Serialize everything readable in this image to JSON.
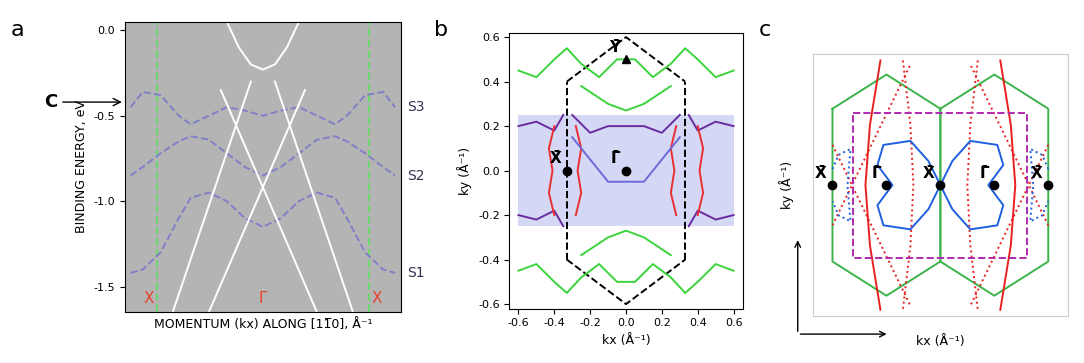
{
  "chart_data": [
    {
      "panel_label": "a",
      "type": "line",
      "ylabel": "BINDING ENERGY, eV",
      "xlabel": "MOMENTUM (kx) ALONG [11̅0], Å⁻¹",
      "xlim": [
        -1.15,
        1.15
      ],
      "ylim": [
        -1.65,
        0.05
      ],
      "yticks": [
        0.0,
        -0.5,
        -1.0,
        -1.5
      ],
      "tick_labels": "y",
      "grid": false,
      "background": "#b4b4b4",
      "vlines": [
        {
          "x": -0.88,
          "color": "#6fd66f",
          "line_style": "dashed"
        },
        {
          "x": 0.88,
          "color": "#6fd66f",
          "line_style": "dashed"
        }
      ],
      "series": [
        {
          "name": "S3",
          "color": "#8080c8",
          "line_style": "dashed",
          "x": [
            -1.1,
            -1.0,
            -0.85,
            -0.7,
            -0.6,
            -0.45,
            -0.3,
            -0.15,
            0,
            0.15,
            0.3,
            0.45,
            0.6,
            0.7,
            0.85,
            1.0,
            1.1
          ],
          "values": [
            -0.45,
            -0.36,
            -0.38,
            -0.5,
            -0.55,
            -0.5,
            -0.45,
            -0.47,
            -0.5,
            -0.47,
            -0.45,
            -0.5,
            -0.55,
            -0.5,
            -0.38,
            -0.36,
            -0.45
          ]
        },
        {
          "name": "S2",
          "color": "#8080c8",
          "line_style": "dashed",
          "x": [
            -1.1,
            -1.0,
            -0.85,
            -0.7,
            -0.6,
            -0.45,
            -0.3,
            -0.15,
            0,
            0.15,
            0.3,
            0.45,
            0.6,
            0.7,
            0.85,
            1.0,
            1.1
          ],
          "values": [
            -0.85,
            -0.8,
            -0.72,
            -0.65,
            -0.62,
            -0.64,
            -0.72,
            -0.8,
            -0.85,
            -0.8,
            -0.72,
            -0.64,
            -0.62,
            -0.65,
            -0.72,
            -0.8,
            -0.85
          ]
        },
        {
          "name": "S1",
          "color": "#8080c8",
          "line_style": "dashed",
          "x": [
            -1.1,
            -1.0,
            -0.85,
            -0.7,
            -0.6,
            -0.45,
            -0.3,
            -0.15,
            0,
            0.15,
            0.3,
            0.45,
            0.6,
            0.7,
            0.85,
            1.0,
            1.1
          ],
          "values": [
            -1.42,
            -1.4,
            -1.3,
            -1.1,
            -0.98,
            -0.95,
            -1.0,
            -1.1,
            -1.15,
            -1.1,
            -1.0,
            -0.95,
            -0.98,
            -1.1,
            -1.3,
            -1.4,
            -1.42
          ]
        },
        {
          "color": "#ffffff",
          "line_style": "solid",
          "x": [
            -0.45,
            0.35
          ],
          "values": [
            -1.65,
            -0.35
          ]
        },
        {
          "color": "#ffffff",
          "line_style": "solid",
          "x": [
            -0.35,
            0.45
          ],
          "values": [
            -0.35,
            -1.65
          ]
        },
        {
          "color": "#ffffff",
          "line_style": "solid",
          "x": [
            -0.1,
            -0.75
          ],
          "values": [
            -0.3,
            -1.65
          ]
        },
        {
          "color": "#ffffff",
          "line_style": "solid",
          "x": [
            0.1,
            0.75
          ],
          "values": [
            -0.3,
            -1.65
          ]
        },
        {
          "color": "#ffffff",
          "line_style": "solid",
          "x": [
            -0.3,
            -0.2,
            -0.1,
            0,
            0.1,
            0.2,
            0.3
          ],
          "values": [
            0.05,
            -0.1,
            -0.2,
            -0.23,
            -0.2,
            -0.1,
            0.05
          ]
        }
      ],
      "points": [
        {
          "label": "X",
          "x": -0.95,
          "color": "#e8402a"
        },
        {
          "label": "Γ",
          "x": 0,
          "color": "#e8402a"
        },
        {
          "label": "X",
          "x": 0.95,
          "color": "#e8402a"
        }
      ],
      "annotations": [
        {
          "text": "C",
          "y": -0.42
        }
      ]
    },
    {
      "panel_label": "b",
      "type": "line",
      "xlabel": "kx (Å⁻¹)",
      "ylabel": "ky (Å⁻¹)",
      "xlim": [
        -0.65,
        0.65
      ],
      "ylim": [
        -0.62,
        0.62
      ],
      "xticks": [
        -0.6,
        -0.4,
        -0.2,
        0.0,
        0.2,
        0.4,
        0.6
      ],
      "yticks": [
        -0.6,
        -0.4,
        -0.2,
        0.0,
        0.2,
        0.4,
        0.6
      ],
      "grid": false,
      "shaded_region": {
        "x": [
          -0.6,
          0.6
        ],
        "y": [
          -0.25,
          0.25
        ],
        "color": "#d4d8f4"
      },
      "series": [
        {
          "color": "#000000",
          "line_style": "dashed",
          "x": [
            -0.33,
            -0.33
          ],
          "values": [
            -0.4,
            0.4
          ]
        },
        {
          "color": "#000000",
          "line_style": "dashed",
          "x": [
            0.33,
            0.33
          ],
          "values": [
            -0.4,
            0.4
          ]
        },
        {
          "color": "#000000",
          "line_style": "dashed",
          "x": [
            -0.33,
            0,
            0.33
          ],
          "values": [
            0.4,
            0.6,
            0.4
          ]
        },
        {
          "color": "#000000",
          "line_style": "dashed",
          "x": [
            -0.33,
            0,
            0.33
          ],
          "values": [
            -0.4,
            -0.6,
            -0.4
          ]
        },
        {
          "color": "#3cd43c",
          "line_style": "solid",
          "x": [
            -0.6,
            -0.5,
            -0.4,
            -0.33,
            -0.25,
            -0.15,
            -0.05,
            0.05,
            0.15,
            0.25,
            0.33,
            0.4,
            0.5,
            0.6
          ],
          "values": [
            0.45,
            0.42,
            0.5,
            0.55,
            0.48,
            0.42,
            0.5,
            0.5,
            0.42,
            0.48,
            0.55,
            0.5,
            0.42,
            0.45
          ]
        },
        {
          "color": "#3cd43c",
          "line_style": "solid",
          "x": [
            -0.6,
            -0.5,
            -0.4,
            -0.33,
            -0.25,
            -0.15,
            -0.05,
            0.05,
            0.15,
            0.25,
            0.33,
            0.4,
            0.5,
            0.6
          ],
          "values": [
            -0.45,
            -0.42,
            -0.5,
            -0.55,
            -0.48,
            -0.42,
            -0.5,
            -0.5,
            -0.42,
            -0.48,
            -0.55,
            -0.5,
            -0.42,
            -0.45
          ]
        },
        {
          "color": "#3cd43c",
          "line_style": "solid",
          "x": [
            -0.25,
            -0.1,
            0,
            0.1,
            0.25
          ],
          "values": [
            0.38,
            0.3,
            0.27,
            0.3,
            0.38
          ]
        },
        {
          "color": "#3cd43c",
          "line_style": "solid",
          "x": [
            -0.25,
            -0.1,
            0,
            0.1,
            0.25
          ],
          "values": [
            -0.38,
            -0.3,
            -0.27,
            -0.3,
            -0.38
          ]
        },
        {
          "color": "#6a2ca0",
          "line_style": "solid",
          "x": [
            -0.6,
            -0.5,
            -0.4,
            -0.35
          ],
          "values": [
            0.2,
            0.22,
            0.18,
            0.25
          ]
        },
        {
          "color": "#6a2ca0",
          "line_style": "solid",
          "x": [
            -0.3,
            -0.2,
            -0.1,
            0.0,
            0.1,
            0.2,
            0.3
          ],
          "values": [
            0.25,
            0.17,
            0.2,
            0.2,
            0.2,
            0.17,
            0.25
          ]
        },
        {
          "color": "#6a2ca0",
          "line_style": "solid",
          "x": [
            0.35,
            0.4,
            0.5,
            0.6
          ],
          "values": [
            0.25,
            0.18,
            0.22,
            0.2
          ]
        },
        {
          "color": "#6a2ca0",
          "line_style": "solid",
          "x": [
            -0.6,
            -0.5,
            -0.4,
            -0.35
          ],
          "values": [
            -0.2,
            -0.22,
            -0.18,
            -0.25
          ]
        },
        {
          "color": "#6a2ca0",
          "line_style": "solid",
          "x": [
            0.35,
            0.4,
            0.5,
            0.6
          ],
          "values": [
            -0.25,
            -0.18,
            -0.22,
            -0.2
          ]
        },
        {
          "color": "#e83030",
          "line_style": "solid",
          "x": [
            -0.28,
            -0.25,
            -0.27,
            -0.25,
            -0.28
          ],
          "values": [
            0.2,
            0.1,
            0,
            -0.1,
            -0.2
          ]
        },
        {
          "color": "#e83030",
          "line_style": "solid",
          "x": [
            0.28,
            0.25,
            0.27,
            0.25,
            0.28
          ],
          "values": [
            0.2,
            0.1,
            0,
            -0.1,
            -0.2
          ]
        },
        {
          "color": "#e83030",
          "line_style": "solid",
          "x": [
            -0.4,
            -0.43,
            -0.41,
            -0.43,
            -0.4
          ],
          "values": [
            0.2,
            0.1,
            0,
            -0.1,
            -0.2
          ]
        },
        {
          "color": "#e83030",
          "line_style": "solid",
          "x": [
            0.4,
            0.43,
            0.41,
            0.43,
            0.4
          ],
          "values": [
            0.2,
            0.1,
            0,
            -0.1,
            -0.2
          ]
        },
        {
          "color": "#6a6ad8",
          "line_style": "solid",
          "x": [
            -0.3,
            -0.1,
            0.1,
            0.3
          ],
          "values": [
            0.15,
            -0.05,
            -0.05,
            0.15
          ]
        }
      ],
      "points": [
        {
          "label": "X̄",
          "x": -0.33,
          "y": 0.0,
          "color": "#000000",
          "marker": "circle"
        },
        {
          "label": "Γ̄",
          "x": 0.0,
          "y": 0.0,
          "color": "#000000",
          "marker": "circle"
        },
        {
          "label": "Ȳ",
          "x": 0.0,
          "y": 0.5,
          "color": "#000000",
          "marker": "triangle"
        }
      ]
    },
    {
      "panel_label": "c",
      "type": "line",
      "xlabel": "kx (Å⁻¹)",
      "ylabel": "ky (Å⁻¹)",
      "xlim": [
        -0.85,
        0.85
      ],
      "ylim": [
        -0.65,
        0.65
      ],
      "tick_labels": false,
      "grid": false,
      "series": [
        {
          "color": "#3cb44b",
          "line_style": "solid",
          "x": [
            -0.72,
            -0.36,
            0,
            0,
            -0.36,
            -0.72,
            -0.72
          ],
          "values": [
            0.38,
            0.55,
            0.38,
            -0.38,
            -0.55,
            -0.38,
            0.38
          ]
        },
        {
          "color": "#3cb44b",
          "line_style": "solid",
          "x": [
            0,
            0.36,
            0.72,
            0.72,
            0.36,
            0,
            0
          ],
          "values": [
            0.38,
            0.55,
            0.38,
            -0.38,
            -0.55,
            -0.38,
            0.38
          ]
        },
        {
          "color": "#e82020",
          "line_style": "dotted",
          "x": [
            -0.25,
            -0.2,
            -0.18,
            -0.2,
            -0.25
          ],
          "values": [
            0.62,
            0.3,
            0,
            -0.3,
            -0.62
          ]
        },
        {
          "color": "#e82020",
          "line_style": "dotted",
          "x": [
            0.25,
            0.2,
            0.18,
            0.2,
            0.25
          ],
          "values": [
            0.62,
            0.3,
            0,
            -0.3,
            -0.62
          ]
        },
        {
          "color": "#e82020",
          "line_style": "dotted",
          "x": [
            -0.72,
            -0.2
          ],
          "values": [
            -0.2,
            0.6
          ]
        },
        {
          "color": "#e82020",
          "line_style": "dotted",
          "x": [
            0.72,
            0.2
          ],
          "values": [
            -0.2,
            0.6
          ]
        },
        {
          "color": "#e82020",
          "line_style": "dotted",
          "x": [
            -0.72,
            -0.2
          ],
          "values": [
            0.2,
            -0.6
          ]
        },
        {
          "color": "#e82020",
          "line_style": "dotted",
          "x": [
            0.72,
            0.2
          ],
          "values": [
            0.2,
            -0.6
          ]
        },
        {
          "color": "#e82020",
          "line_style": "solid",
          "x": [
            -0.4,
            -0.47,
            -0.5,
            -0.47,
            -0.4
          ],
          "values": [
            0.62,
            0.3,
            0,
            -0.3,
            -0.62
          ]
        },
        {
          "color": "#e82020",
          "line_style": "solid",
          "x": [
            0.4,
            0.47,
            0.5,
            0.47,
            0.4
          ],
          "values": [
            0.62,
            0.3,
            0,
            -0.3,
            -0.62
          ]
        },
        {
          "color": "#1f5fe0",
          "line_style": "solid",
          "x": [
            0,
            -0.08,
            -0.2,
            -0.38,
            -0.42,
            -0.32,
            -0.42,
            -0.38,
            -0.2,
            -0.08,
            0
          ],
          "values": [
            0,
            0.12,
            0.22,
            0.2,
            0.1,
            0,
            -0.1,
            -0.2,
            -0.22,
            -0.12,
            0
          ]
        },
        {
          "color": "#1f5fe0",
          "line_style": "solid",
          "x": [
            0,
            0.08,
            0.2,
            0.38,
            0.42,
            0.32,
            0.42,
            0.38,
            0.2,
            0.08,
            0
          ],
          "values": [
            0,
            0.12,
            0.22,
            0.2,
            0.1,
            0,
            -0.1,
            -0.2,
            -0.22,
            -0.12,
            0
          ]
        },
        {
          "color": "#1f5fe0",
          "line_style": "dotted",
          "x": [
            -0.72,
            -0.68,
            -0.6,
            -0.62,
            -0.6,
            -0.68,
            -0.72
          ],
          "values": [
            0.08,
            0.15,
            0.18,
            0,
            -0.18,
            -0.15,
            -0.08
          ]
        },
        {
          "color": "#1f5fe0",
          "line_style": "dotted",
          "x": [
            0.72,
            0.68,
            0.6,
            0.62,
            0.6,
            0.68,
            0.72
          ],
          "values": [
            0.08,
            0.15,
            0.18,
            0,
            -0.18,
            -0.15,
            -0.08
          ]
        },
        {
          "color": "#b02ab0",
          "line_style": "dashed",
          "x": [
            -0.58,
            0.58,
            0.58,
            -0.58,
            -0.58
          ],
          "values": [
            0.36,
            0.36,
            -0.36,
            -0.36,
            0.36
          ]
        }
      ],
      "points": [
        {
          "label": "X̄",
          "x": -0.72,
          "y": 0.0,
          "color": "#000000",
          "marker": "circle"
        },
        {
          "label": "Γ̄",
          "x": -0.36,
          "y": 0.0,
          "color": "#000000",
          "marker": "circle"
        },
        {
          "label": "X̄",
          "x": 0.0,
          "y": 0.0,
          "color": "#000000",
          "marker": "circle"
        },
        {
          "label": "Γ̄",
          "x": 0.36,
          "y": 0.0,
          "color": "#000000",
          "marker": "circle"
        },
        {
          "label": "X̄",
          "x": 0.72,
          "y": 0.0,
          "color": "#000000",
          "marker": "circle"
        }
      ]
    }
  ]
}
